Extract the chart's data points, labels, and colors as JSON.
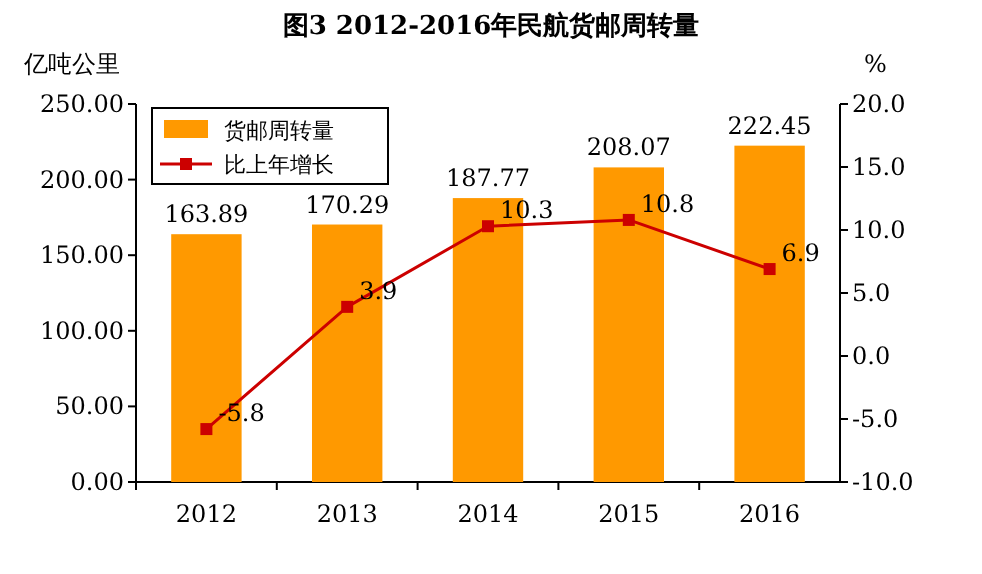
{
  "chart_data": {
    "type": "bar",
    "title": "图3 2012-2016年民航货邮周转量",
    "ylabel": "亿吨公里",
    "y2label": "%",
    "categories": [
      "2012",
      "2013",
      "2014",
      "2015",
      "2016"
    ],
    "series": [
      {
        "name": "货邮周转量",
        "color": "#ff9900",
        "values": [
          163.89,
          170.29,
          187.77,
          208.07,
          222.45
        ]
      },
      {
        "name": "比上年增长",
        "type": "line",
        "axis": "y2",
        "color": "#cc0000",
        "marker": "square",
        "values": [
          -5.8,
          3.9,
          10.3,
          10.8,
          6.9
        ]
      }
    ],
    "ylim": [
      0,
      250
    ],
    "yticks": [
      {
        "value": 0,
        "label": "0.00"
      },
      {
        "value": 50,
        "label": "50.00"
      },
      {
        "value": 100,
        "label": "100.00"
      },
      {
        "value": 150,
        "label": "150.00"
      },
      {
        "value": 200,
        "label": "200.00"
      },
      {
        "value": 250,
        "label": "250.00"
      }
    ],
    "y2lim": [
      -10,
      20
    ],
    "y2ticks": [
      {
        "value": -10,
        "label": "-10.0"
      },
      {
        "value": -5,
        "label": "-5.0"
      },
      {
        "value": 0,
        "label": "0.0"
      },
      {
        "value": 5,
        "label": "5.0"
      },
      {
        "value": 10,
        "label": "10.0"
      },
      {
        "value": 15,
        "label": "15.0"
      },
      {
        "value": 20,
        "label": "20.0"
      }
    ],
    "data_labels": true,
    "legend": "top left",
    "grid": false
  }
}
